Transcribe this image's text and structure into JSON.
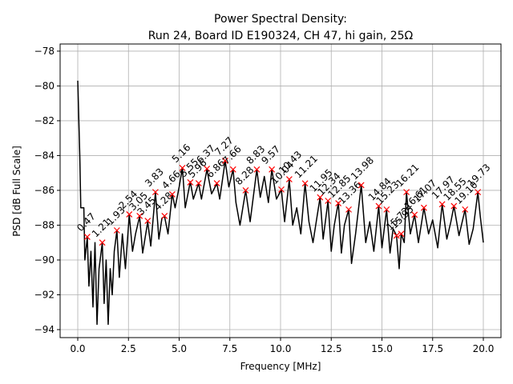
{
  "chart_data": {
    "type": "line",
    "title": "Power Spectral Density:",
    "subtitle": "Run 24, Board ID E190324, CH 47, hi gain, 25Ω",
    "x_label": "Frequency [MHz]",
    "y_label": "PSD [dB Full Scale]",
    "xlim": [
      -0.87,
      20.87
    ],
    "ylim": [
      -94.46,
      -77.59
    ],
    "xticks": [
      {
        "value": 0,
        "label": "0.0"
      },
      {
        "value": 2.5,
        "label": "2.5"
      },
      {
        "value": 5,
        "label": "5.0"
      },
      {
        "value": 7.5,
        "label": "7.5"
      },
      {
        "value": 10,
        "label": "10.0"
      },
      {
        "value": 12.5,
        "label": "12.5"
      },
      {
        "value": 15,
        "label": "15.0"
      },
      {
        "value": 17.5,
        "label": "17.5"
      },
      {
        "value": 20,
        "label": "20.0"
      }
    ],
    "yticks": [
      {
        "value": -94,
        "label": "−94"
      },
      {
        "value": -92,
        "label": "−92"
      },
      {
        "value": -90,
        "label": "−90"
      },
      {
        "value": -88,
        "label": "−88"
      },
      {
        "value": -86,
        "label": "−86"
      },
      {
        "value": -84,
        "label": "−84"
      },
      {
        "value": -82,
        "label": "−82"
      },
      {
        "value": -80,
        "label": "−80"
      },
      {
        "value": -78,
        "label": "−78"
      }
    ],
    "grid": true,
    "series": [
      {
        "color": "#000000",
        "x": [
          0,
          0.1,
          0.15,
          0.3,
          0.35,
          0.47,
          0.55,
          0.65,
          0.75,
          0.85,
          0.95,
          1.05,
          1.21,
          1.3,
          1.4,
          1.5,
          1.6,
          1.7,
          1.8,
          1.93,
          2.05,
          2.2,
          2.35,
          2.54,
          2.7,
          2.85,
          3.05,
          3.2,
          3.45,
          3.6,
          3.83,
          4.0,
          4.15,
          4.28,
          4.45,
          4.66,
          4.8,
          5.0,
          5.16,
          5.3,
          5.55,
          5.7,
          5.96,
          6.1,
          6.37,
          6.6,
          6.86,
          7.0,
          7.27,
          7.45,
          7.66,
          7.8,
          8.0,
          8.28,
          8.5,
          8.83,
          9.0,
          9.2,
          9.4,
          9.57,
          9.8,
          10.04,
          10.2,
          10.43,
          10.6,
          10.8,
          11.0,
          11.21,
          11.4,
          11.6,
          11.8,
          11.95,
          12.1,
          12.34,
          12.5,
          12.65,
          12.85,
          13.0,
          13.15,
          13.36,
          13.5,
          13.7,
          13.98,
          14.2,
          14.4,
          14.6,
          14.84,
          15.0,
          15.23,
          15.4,
          15.55,
          15.72,
          15.85,
          15.95,
          16.1,
          16.21,
          16.4,
          16.61,
          16.8,
          17.07,
          17.3,
          17.5,
          17.75,
          17.97,
          18.2,
          18.4,
          18.55,
          18.8,
          19.1,
          19.3,
          19.5,
          19.73,
          19.85,
          20.0
        ],
        "values": [
          -79.7,
          -84,
          -87,
          -87,
          -90,
          -88.7,
          -91.5,
          -89.5,
          -92.7,
          -89,
          -93.7,
          -90.5,
          -89,
          -92.5,
          -90,
          -93.7,
          -90.5,
          -92,
          -89.5,
          -88.3,
          -91,
          -88.5,
          -90.5,
          -87.4,
          -89.5,
          -88.5,
          -87.5,
          -89.6,
          -87.8,
          -89.2,
          -86.1,
          -88.8,
          -87.6,
          -87.5,
          -88.5,
          -86.2,
          -87,
          -85.8,
          -84.7,
          -87,
          -85.5,
          -86.5,
          -85.6,
          -86.5,
          -84.8,
          -86.2,
          -85.6,
          -86.5,
          -84.3,
          -85.8,
          -84.8,
          -86.7,
          -88,
          -86,
          -87.8,
          -84.8,
          -86.4,
          -85.2,
          -86.7,
          -84.8,
          -86.5,
          -85.95,
          -87.8,
          -85.4,
          -88,
          -87,
          -88.5,
          -85.6,
          -87.8,
          -89,
          -87.5,
          -86.4,
          -88.8,
          -86.6,
          -89.5,
          -88,
          -86.7,
          -89.6,
          -88,
          -87.1,
          -90.2,
          -88.5,
          -85.7,
          -89,
          -87.8,
          -89.5,
          -86.9,
          -89.3,
          -87.1,
          -89.6,
          -88.2,
          -88.6,
          -90.5,
          -88.5,
          -89,
          -86.1,
          -88.5,
          -87.4,
          -89,
          -87,
          -88.5,
          -87.7,
          -89.3,
          -86.8,
          -88.8,
          -87.8,
          -86.9,
          -88.6,
          -87.1,
          -89.1,
          -88.2,
          -86.1,
          -87.5,
          -89
        ]
      }
    ],
    "peaks": {
      "color": "#ff0000",
      "x": [
        0.47,
        1.21,
        1.93,
        2.54,
        3.05,
        3.45,
        3.83,
        4.28,
        4.66,
        5.16,
        5.55,
        5.96,
        6.37,
        6.86,
        7.27,
        7.66,
        8.28,
        8.83,
        9.57,
        10.04,
        10.43,
        11.21,
        11.95,
        12.34,
        12.85,
        13.36,
        13.98,
        14.84,
        15.23,
        15.72,
        15.95,
        16.21,
        16.61,
        17.07,
        17.97,
        18.55,
        19.1,
        19.73
      ],
      "x_labels": [
        "0.47",
        "1.21",
        "1.93",
        "2.54",
        "3.05",
        "3.45",
        "3.83",
        "4.28",
        "4.66",
        "5.16",
        "5.55",
        "5.96",
        "6.37",
        "6.86",
        "7.27",
        "7.66",
        "8.28",
        "8.83",
        "9.57",
        "10.04",
        "10.43",
        "11.21",
        "11.95",
        "12.34",
        "12.85",
        "13.36",
        "13.98",
        "14.84",
        "15.23",
        "15.72",
        "15.95",
        "16.21",
        "16.61",
        "17.07",
        "17.97",
        "18.55",
        "19.10",
        "19.73"
      ],
      "values": [
        -88.67,
        -89.0,
        -88.3,
        -87.38,
        -87.47,
        -87.75,
        -86.1,
        -87.47,
        -86.23,
        -84.71,
        -85.54,
        -85.59,
        -84.76,
        -85.59,
        -84.3,
        -84.8,
        -86.0,
        -84.8,
        -84.8,
        -85.95,
        -85.36,
        -85.6,
        -86.4,
        -86.6,
        -86.74,
        -87.1,
        -85.7,
        -86.9,
        -87.1,
        -88.6,
        -88.5,
        -86.1,
        -87.4,
        -87.0,
        -86.8,
        -86.9,
        -87.1,
        -86.1
      ]
    }
  }
}
